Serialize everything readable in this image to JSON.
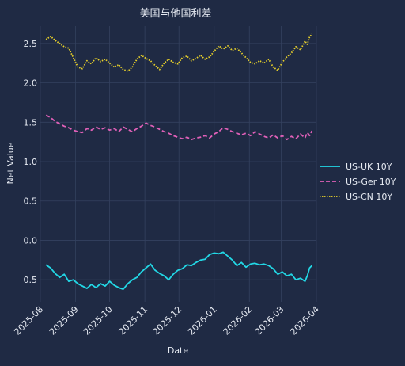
{
  "chart_data": {
    "type": "line",
    "title": "美国与他国利差",
    "xlabel": "Date",
    "ylabel": "Net Value",
    "xlim": [
      "2025-08-01",
      "2026-04-01"
    ],
    "ylim": [
      -0.78,
      2.72
    ],
    "x_ticks": [
      "2025-08",
      "2025-09",
      "2025-10",
      "2025-11",
      "2025-12",
      "2026-01",
      "2026-02",
      "2026-03",
      "2026-04"
    ],
    "y_ticks": [
      -0.5,
      0.0,
      0.5,
      1.0,
      1.5,
      2.0,
      2.5
    ],
    "y_tick_labels": [
      "−0.5",
      "0.0",
      "0.5",
      "1.0",
      "1.5",
      "2.0",
      "2.5"
    ],
    "grid": true,
    "legend_position": "right",
    "series": [
      {
        "name": "US-UK 10Y",
        "color": "#22d8e6",
        "style": "solid",
        "points": [
          [
            "2025-08-06",
            -0.31
          ],
          [
            "2025-08-10",
            -0.35
          ],
          [
            "2025-08-14",
            -0.42
          ],
          [
            "2025-08-18",
            -0.47
          ],
          [
            "2025-08-22",
            -0.43
          ],
          [
            "2025-08-26",
            -0.52
          ],
          [
            "2025-08-30",
            -0.5
          ],
          [
            "2025-09-03",
            -0.55
          ],
          [
            "2025-09-07",
            -0.58
          ],
          [
            "2025-09-11",
            -0.61
          ],
          [
            "2025-09-15",
            -0.56
          ],
          [
            "2025-09-19",
            -0.6
          ],
          [
            "2025-09-23",
            -0.55
          ],
          [
            "2025-09-27",
            -0.58
          ],
          [
            "2025-10-01",
            -0.52
          ],
          [
            "2025-10-05",
            -0.57
          ],
          [
            "2025-10-09",
            -0.6
          ],
          [
            "2025-10-13",
            -0.62
          ],
          [
            "2025-10-17",
            -0.55
          ],
          [
            "2025-10-21",
            -0.5
          ],
          [
            "2025-10-25",
            -0.47
          ],
          [
            "2025-10-29",
            -0.4
          ],
          [
            "2025-11-02",
            -0.35
          ],
          [
            "2025-11-06",
            -0.3
          ],
          [
            "2025-11-10",
            -0.38
          ],
          [
            "2025-11-14",
            -0.42
          ],
          [
            "2025-11-18",
            -0.45
          ],
          [
            "2025-11-22",
            -0.5
          ],
          [
            "2025-11-26",
            -0.43
          ],
          [
            "2025-11-30",
            -0.38
          ],
          [
            "2025-12-04",
            -0.36
          ],
          [
            "2025-12-08",
            -0.31
          ],
          [
            "2025-12-12",
            -0.32
          ],
          [
            "2025-12-16",
            -0.28
          ],
          [
            "2025-12-20",
            -0.25
          ],
          [
            "2025-12-24",
            -0.24
          ],
          [
            "2025-12-28",
            -0.18
          ],
          [
            "2026-01-01",
            -0.16
          ],
          [
            "2026-01-05",
            -0.17
          ],
          [
            "2026-01-09",
            -0.15
          ],
          [
            "2026-01-13",
            -0.2
          ],
          [
            "2026-01-17",
            -0.25
          ],
          [
            "2026-01-21",
            -0.32
          ],
          [
            "2026-01-25",
            -0.28
          ],
          [
            "2026-01-29",
            -0.34
          ],
          [
            "2026-02-02",
            -0.3
          ],
          [
            "2026-02-06",
            -0.29
          ],
          [
            "2026-02-10",
            -0.31
          ],
          [
            "2026-02-14",
            -0.3
          ],
          [
            "2026-02-18",
            -0.32
          ],
          [
            "2026-02-22",
            -0.36
          ],
          [
            "2026-02-26",
            -0.43
          ],
          [
            "2026-03-02",
            -0.4
          ],
          [
            "2026-03-06",
            -0.45
          ],
          [
            "2026-03-10",
            -0.43
          ],
          [
            "2026-03-14",
            -0.5
          ],
          [
            "2026-03-18",
            -0.48
          ],
          [
            "2026-03-22",
            -0.52
          ],
          [
            "2026-03-24",
            -0.45
          ],
          [
            "2026-03-26",
            -0.35
          ],
          [
            "2026-03-28",
            -0.32
          ]
        ]
      },
      {
        "name": "US-Ger 10Y",
        "color": "#e060b8",
        "style": "dashed",
        "points": [
          [
            "2025-08-06",
            1.59
          ],
          [
            "2025-08-10",
            1.56
          ],
          [
            "2025-08-14",
            1.51
          ],
          [
            "2025-08-18",
            1.48
          ],
          [
            "2025-08-22",
            1.45
          ],
          [
            "2025-08-26",
            1.43
          ],
          [
            "2025-08-30",
            1.4
          ],
          [
            "2025-09-03",
            1.38
          ],
          [
            "2025-09-07",
            1.37
          ],
          [
            "2025-09-11",
            1.42
          ],
          [
            "2025-09-15",
            1.4
          ],
          [
            "2025-09-19",
            1.44
          ],
          [
            "2025-09-23",
            1.41
          ],
          [
            "2025-09-27",
            1.43
          ],
          [
            "2025-10-01",
            1.4
          ],
          [
            "2025-10-05",
            1.42
          ],
          [
            "2025-10-09",
            1.38
          ],
          [
            "2025-10-13",
            1.44
          ],
          [
            "2025-10-17",
            1.41
          ],
          [
            "2025-10-21",
            1.38
          ],
          [
            "2025-10-25",
            1.42
          ],
          [
            "2025-10-29",
            1.45
          ],
          [
            "2025-11-02",
            1.49
          ],
          [
            "2025-11-06",
            1.46
          ],
          [
            "2025-11-10",
            1.44
          ],
          [
            "2025-11-14",
            1.41
          ],
          [
            "2025-11-18",
            1.38
          ],
          [
            "2025-11-22",
            1.36
          ],
          [
            "2025-11-26",
            1.33
          ],
          [
            "2025-11-30",
            1.31
          ],
          [
            "2025-12-04",
            1.29
          ],
          [
            "2025-12-08",
            1.31
          ],
          [
            "2025-12-12",
            1.28
          ],
          [
            "2025-12-16",
            1.3
          ],
          [
            "2025-12-20",
            1.31
          ],
          [
            "2025-12-24",
            1.33
          ],
          [
            "2025-12-28",
            1.3
          ],
          [
            "2026-01-01",
            1.35
          ],
          [
            "2026-01-05",
            1.38
          ],
          [
            "2026-01-09",
            1.43
          ],
          [
            "2026-01-13",
            1.41
          ],
          [
            "2026-01-17",
            1.38
          ],
          [
            "2026-01-21",
            1.36
          ],
          [
            "2026-01-25",
            1.34
          ],
          [
            "2026-01-29",
            1.36
          ],
          [
            "2026-02-02",
            1.33
          ],
          [
            "2026-02-06",
            1.38
          ],
          [
            "2026-02-10",
            1.35
          ],
          [
            "2026-02-14",
            1.32
          ],
          [
            "2026-02-18",
            1.3
          ],
          [
            "2026-02-22",
            1.34
          ],
          [
            "2026-02-26",
            1.3
          ],
          [
            "2026-03-02",
            1.33
          ],
          [
            "2026-03-06",
            1.28
          ],
          [
            "2026-03-10",
            1.32
          ],
          [
            "2026-03-14",
            1.29
          ],
          [
            "2026-03-18",
            1.35
          ],
          [
            "2026-03-22",
            1.3
          ],
          [
            "2026-03-24",
            1.37
          ],
          [
            "2026-03-26",
            1.33
          ],
          [
            "2026-03-28",
            1.39
          ]
        ]
      },
      {
        "name": "US-CN 10Y",
        "color": "#e8d12a",
        "style": "dotted",
        "points": [
          [
            "2025-08-06",
            2.55
          ],
          [
            "2025-08-10",
            2.59
          ],
          [
            "2025-08-14",
            2.54
          ],
          [
            "2025-08-18",
            2.5
          ],
          [
            "2025-08-22",
            2.46
          ],
          [
            "2025-08-26",
            2.44
          ],
          [
            "2025-08-30",
            2.32
          ],
          [
            "2025-09-03",
            2.2
          ],
          [
            "2025-09-07",
            2.18
          ],
          [
            "2025-09-11",
            2.28
          ],
          [
            "2025-09-15",
            2.24
          ],
          [
            "2025-09-19",
            2.32
          ],
          [
            "2025-09-23",
            2.27
          ],
          [
            "2025-09-27",
            2.3
          ],
          [
            "2025-10-01",
            2.25
          ],
          [
            "2025-10-05",
            2.2
          ],
          [
            "2025-10-09",
            2.23
          ],
          [
            "2025-10-13",
            2.17
          ],
          [
            "2025-10-17",
            2.15
          ],
          [
            "2025-10-21",
            2.2
          ],
          [
            "2025-10-25",
            2.3
          ],
          [
            "2025-10-29",
            2.35
          ],
          [
            "2025-11-02",
            2.31
          ],
          [
            "2025-11-06",
            2.28
          ],
          [
            "2025-11-10",
            2.22
          ],
          [
            "2025-11-14",
            2.17
          ],
          [
            "2025-11-18",
            2.25
          ],
          [
            "2025-11-22",
            2.3
          ],
          [
            "2025-11-26",
            2.26
          ],
          [
            "2025-11-30",
            2.24
          ],
          [
            "2025-12-04",
            2.32
          ],
          [
            "2025-12-08",
            2.34
          ],
          [
            "2025-12-12",
            2.28
          ],
          [
            "2025-12-16",
            2.31
          ],
          [
            "2025-12-20",
            2.35
          ],
          [
            "2025-12-24",
            2.3
          ],
          [
            "2025-12-28",
            2.33
          ],
          [
            "2026-01-01",
            2.4
          ],
          [
            "2026-01-05",
            2.47
          ],
          [
            "2026-01-09",
            2.43
          ],
          [
            "2026-01-13",
            2.47
          ],
          [
            "2026-01-17",
            2.41
          ],
          [
            "2026-01-21",
            2.44
          ],
          [
            "2026-01-25",
            2.38
          ],
          [
            "2026-01-29",
            2.32
          ],
          [
            "2026-02-02",
            2.26
          ],
          [
            "2026-02-06",
            2.24
          ],
          [
            "2026-02-10",
            2.28
          ],
          [
            "2026-02-14",
            2.25
          ],
          [
            "2026-02-18",
            2.3
          ],
          [
            "2026-02-22",
            2.2
          ],
          [
            "2026-02-26",
            2.16
          ],
          [
            "2026-03-02",
            2.26
          ],
          [
            "2026-03-06",
            2.33
          ],
          [
            "2026-03-10",
            2.38
          ],
          [
            "2026-03-14",
            2.46
          ],
          [
            "2026-03-18",
            2.42
          ],
          [
            "2026-03-22",
            2.53
          ],
          [
            "2026-03-24",
            2.49
          ],
          [
            "2026-03-26",
            2.58
          ],
          [
            "2026-03-28",
            2.62
          ]
        ]
      }
    ]
  }
}
